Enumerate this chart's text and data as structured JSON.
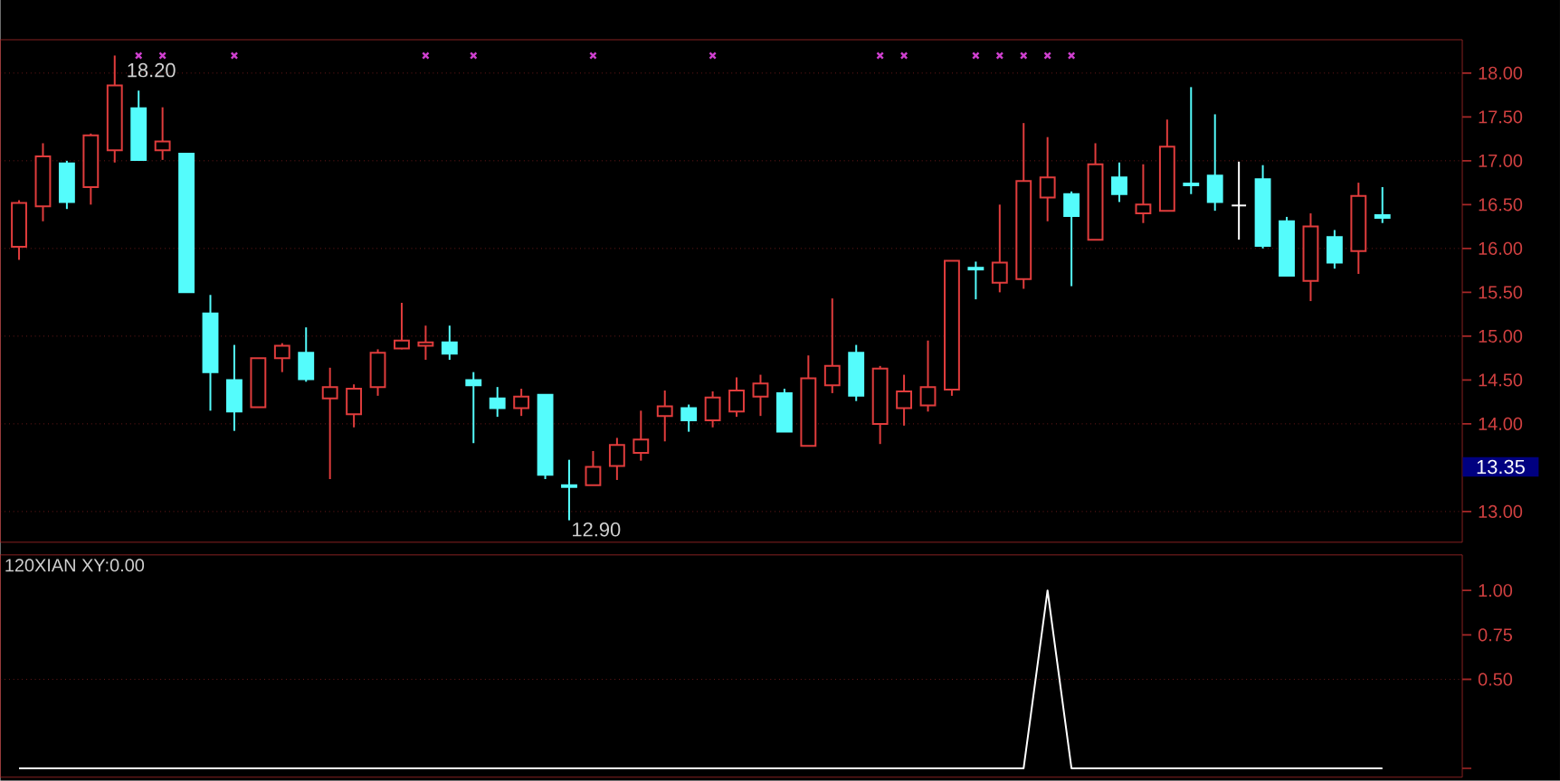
{
  "chart_data": [
    {
      "type": "candlestick",
      "categories": [
        null,
        null,
        null,
        null,
        null,
        null,
        null,
        null,
        null,
        null,
        null,
        null,
        null,
        null,
        null,
        null,
        null,
        null,
        null,
        null,
        null,
        null,
        null,
        null,
        null,
        null,
        null,
        null,
        null,
        null,
        null,
        null,
        null,
        null,
        null,
        null,
        null,
        null,
        null,
        null,
        null,
        null,
        null,
        null,
        null,
        null,
        null,
        null,
        null,
        null,
        null,
        null,
        null,
        null,
        null,
        null,
        null,
        null
      ],
      "ohlc": [
        [
          16.02,
          16.55,
          15.87,
          16.52
        ],
        [
          16.48,
          17.2,
          16.31,
          17.05
        ],
        [
          16.97,
          17.0,
          16.45,
          16.53
        ],
        [
          16.7,
          17.31,
          16.5,
          17.29
        ],
        [
          17.12,
          18.2,
          16.98,
          17.86
        ],
        [
          17.6,
          17.8,
          17.01,
          17.01
        ],
        [
          17.12,
          17.61,
          17.01,
          17.22
        ],
        [
          17.08,
          17.08,
          15.5,
          15.5
        ],
        [
          15.26,
          15.47,
          14.15,
          14.59
        ],
        [
          14.5,
          14.9,
          13.92,
          14.14
        ],
        [
          14.19,
          14.75,
          14.19,
          14.75
        ],
        [
          14.75,
          14.92,
          14.59,
          14.89
        ],
        [
          14.81,
          15.1,
          14.48,
          14.51
        ],
        [
          14.29,
          14.64,
          13.37,
          14.42
        ],
        [
          14.11,
          14.45,
          13.96,
          14.4
        ],
        [
          14.42,
          14.85,
          14.32,
          14.81
        ],
        [
          14.86,
          15.38,
          14.85,
          14.95
        ],
        [
          14.89,
          15.12,
          14.73,
          14.93
        ],
        [
          14.93,
          15.12,
          14.73,
          14.8
        ],
        [
          14.5,
          14.59,
          13.78,
          14.44
        ],
        [
          14.29,
          14.42,
          14.08,
          14.18
        ],
        [
          14.18,
          14.4,
          14.09,
          14.31
        ],
        [
          14.33,
          14.33,
          13.37,
          13.42
        ],
        [
          13.3,
          13.59,
          12.9,
          13.28
        ],
        [
          13.3,
          13.69,
          13.3,
          13.51
        ],
        [
          13.52,
          13.84,
          13.36,
          13.76
        ],
        [
          13.67,
          14.15,
          13.58,
          13.82
        ],
        [
          14.09,
          14.38,
          13.8,
          14.2
        ],
        [
          14.18,
          14.22,
          13.91,
          14.04
        ],
        [
          14.04,
          14.37,
          13.96,
          14.3
        ],
        [
          14.14,
          14.53,
          14.08,
          14.38
        ],
        [
          14.31,
          14.56,
          14.09,
          14.46
        ],
        [
          14.35,
          14.4,
          13.91,
          13.91
        ],
        [
          13.75,
          14.78,
          13.75,
          14.52
        ],
        [
          14.44,
          15.43,
          14.35,
          14.66
        ],
        [
          14.81,
          14.9,
          14.26,
          14.32
        ],
        [
          14.0,
          14.66,
          13.77,
          14.63
        ],
        [
          14.18,
          14.56,
          13.98,
          14.37
        ],
        [
          14.21,
          14.95,
          14.14,
          14.42
        ],
        [
          14.39,
          15.86,
          14.32,
          15.86
        ],
        [
          15.78,
          15.85,
          15.42,
          15.76
        ],
        [
          15.61,
          16.5,
          15.5,
          15.84
        ],
        [
          15.65,
          17.43,
          15.54,
          16.77
        ],
        [
          16.58,
          17.27,
          16.31,
          16.81
        ],
        [
          16.62,
          16.65,
          15.57,
          16.37
        ],
        [
          16.1,
          17.2,
          16.1,
          16.96
        ],
        [
          16.81,
          16.98,
          16.53,
          16.62
        ],
        [
          16.4,
          16.96,
          16.29,
          16.5
        ],
        [
          16.43,
          17.47,
          16.43,
          17.16
        ],
        [
          16.74,
          17.84,
          16.62,
          16.72
        ],
        [
          16.83,
          17.53,
          16.43,
          16.53
        ],
        [
          16.49,
          16.99,
          16.1,
          16.49
        ],
        [
          16.79,
          16.95,
          16.0,
          16.03
        ],
        [
          16.31,
          16.36,
          15.69,
          15.69
        ],
        [
          15.63,
          16.4,
          15.4,
          16.25
        ],
        [
          16.13,
          16.21,
          15.77,
          15.84
        ],
        [
          15.97,
          16.75,
          15.71,
          16.6
        ],
        [
          16.38,
          16.7,
          16.29,
          16.35
        ]
      ],
      "colors": [
        "#e03c3c",
        "#e03c3c",
        "#54fcfc",
        "#e03c3c",
        "#e03c3c",
        "#54fcfc",
        "#e03c3c",
        "#54fcfc",
        "#54fcfc",
        "#54fcfc",
        "#e03c3c",
        "#e03c3c",
        "#54fcfc",
        "#e03c3c",
        "#e03c3c",
        "#e03c3c",
        "#e03c3c",
        "#e03c3c",
        "#54fcfc",
        "#54fcfc",
        "#54fcfc",
        "#e03c3c",
        "#54fcfc",
        "#54fcfc",
        "#e03c3c",
        "#e03c3c",
        "#e03c3c",
        "#e03c3c",
        "#54fcfc",
        "#e03c3c",
        "#e03c3c",
        "#e03c3c",
        "#54fcfc",
        "#e03c3c",
        "#e03c3c",
        "#54fcfc",
        "#e03c3c",
        "#e03c3c",
        "#e03c3c",
        "#e03c3c",
        "#54fcfc",
        "#e03c3c",
        "#e03c3c",
        "#e03c3c",
        "#54fcfc",
        "#e03c3c",
        "#54fcfc",
        "#e03c3c",
        "#e03c3c",
        "#54fcfc",
        "#54fcfc",
        "#ffffff",
        "#54fcfc",
        "#54fcfc",
        "#e03c3c",
        "#54fcfc",
        "#e03c3c",
        "#54fcfc"
      ],
      "series": [
        {
          "type": "scatter",
          "color": "#d040d0",
          "marker": "cross",
          "values": [
            null,
            null,
            null,
            null,
            null,
            18.2,
            18.2,
            null,
            null,
            18.2,
            null,
            null,
            null,
            null,
            null,
            null,
            null,
            18.2,
            null,
            18.2,
            null,
            null,
            null,
            null,
            18.2,
            null,
            null,
            null,
            null,
            18.2,
            null,
            null,
            null,
            null,
            null,
            null,
            18.2,
            18.2,
            null,
            null,
            18.2,
            18.2,
            18.2,
            18.2,
            18.2,
            null,
            null,
            null,
            null,
            null,
            null,
            null,
            null,
            null,
            null,
            null,
            null,
            null
          ]
        }
      ],
      "ylim": [
        12.65,
        18.38
      ],
      "yticks": [
        {
          "value": 13,
          "label": "13.00"
        },
        {
          "value": 14,
          "label": "14.00"
        },
        {
          "value": 14.5,
          "label": "14.50"
        },
        {
          "value": 15,
          "label": "15.00"
        },
        {
          "value": 15.5,
          "label": "15.50"
        },
        {
          "value": 16,
          "label": "16.00"
        },
        {
          "value": 16.5,
          "label": "16.50"
        },
        {
          "value": 17,
          "label": "17.00"
        },
        {
          "value": 17.5,
          "label": "17.50"
        },
        {
          "value": 18,
          "label": "18.00"
        }
      ],
      "grid": "y",
      "annotations": [
        "18.20",
        "12.90",
        "13.35"
      ]
    },
    {
      "type": "line",
      "title": "120XIAN XY:0.00",
      "categories": [
        null,
        null,
        null,
        null,
        null,
        null,
        null,
        null,
        null,
        null,
        null,
        null,
        null,
        null,
        null,
        null,
        null,
        null,
        null,
        null,
        null,
        null,
        null,
        null,
        null,
        null,
        null,
        null,
        null,
        null,
        null,
        null,
        null,
        null,
        null,
        null,
        null,
        null,
        null,
        null,
        null,
        null,
        null,
        null,
        null,
        null,
        null,
        null,
        null,
        null,
        null,
        null,
        null,
        null,
        null,
        null,
        null,
        null
      ],
      "series": [
        {
          "color": "#ffffff",
          "values": [
            0,
            0,
            0,
            0,
            0,
            0,
            0,
            0,
            0,
            0,
            0,
            0,
            0,
            0,
            0,
            0,
            0,
            0,
            0,
            0,
            0,
            0,
            0,
            0,
            0,
            0,
            0,
            0,
            0,
            0,
            0,
            0,
            0,
            0,
            0,
            0,
            0,
            0,
            0,
            0,
            0,
            0,
            0,
            1,
            0,
            0,
            0,
            0,
            0,
            0,
            0,
            0,
            0,
            0,
            0,
            0,
            0,
            0
          ]
        }
      ],
      "ylim": [
        -0.05,
        1.2
      ],
      "yticks": [
        {
          "value": 0.5,
          "label": "0.50"
        },
        {
          "value": 0.75,
          "label": "0.75"
        },
        {
          "value": 1,
          "label": "1.00"
        }
      ],
      "ref_lines": [
        {
          "axis": "y",
          "value": 0.5,
          "line_style": "dotted",
          "color": "#a82828"
        }
      ]
    }
  ]
}
